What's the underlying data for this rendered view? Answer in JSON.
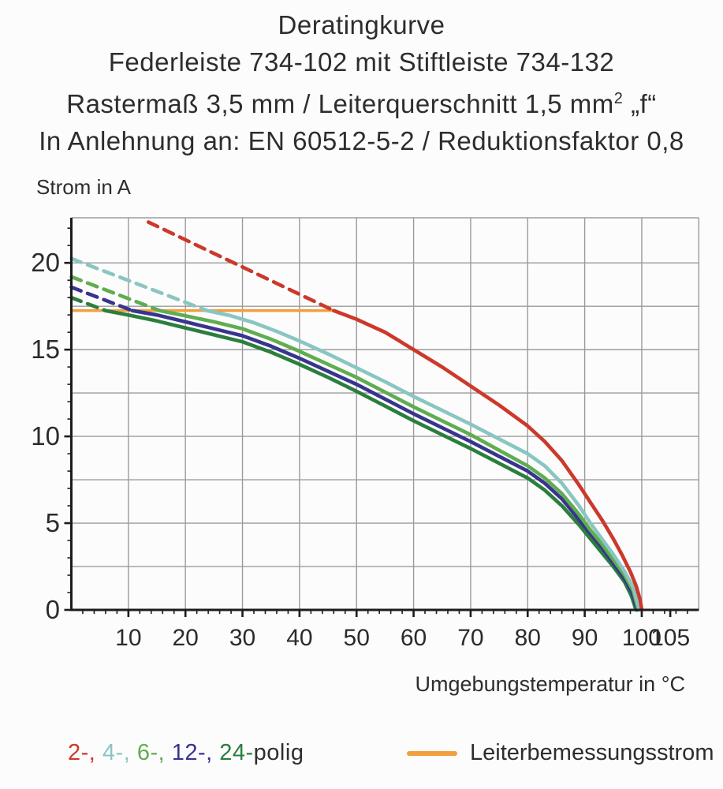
{
  "title": {
    "line1": "Deratingkurve",
    "line2": "Federleiste 734-102 mit Stiftleiste 734-132",
    "line3_pre": "Rastermaß 3,5 mm / Leiterquerschnitt 1,5 mm",
    "line3_sup": "2",
    "line3_post": " „f“",
    "line4": "In Anlehnung an: EN 60512-5-2 / Reduktionsfaktor 0,8"
  },
  "axes": {
    "y_title": "Strom in A",
    "x_title": "Umgebungstemperatur in °C"
  },
  "legend": {
    "poles": [
      {
        "text": "2-, ",
        "color": "#cc392b"
      },
      {
        "text": "4-, ",
        "color": "#8ac6c1"
      },
      {
        "text": "6-, ",
        "color": "#5fad4f"
      },
      {
        "text": "12-, ",
        "color": "#38348f"
      },
      {
        "text": "24-",
        "color": "#2b7e3d"
      },
      {
        "text": "polig",
        "color": "#2e2e2e"
      }
    ],
    "rated_label": "Leiterbemessungsstrom",
    "rated_color": "#f0a03c"
  },
  "chart_data": {
    "type": "line",
    "title": "Deratingkurve Federleiste 734-102 mit Stiftleiste 734-132",
    "xlabel": "Umgebungstemperatur in °C",
    "ylabel": "Strom in A",
    "xlim": [
      0,
      110
    ],
    "ylim": [
      0,
      22.6
    ],
    "grid": {
      "x_values": [
        10,
        20,
        30,
        40,
        50,
        60,
        70,
        80,
        90,
        100
      ],
      "y_values": [
        2.5,
        5,
        7.5,
        10,
        12.5,
        15,
        17.5,
        20
      ],
      "color": "#9b9b9b",
      "frame_color": "#9b9b9b"
    },
    "ticks": {
      "x_major": [
        10,
        20,
        30,
        40,
        50,
        60,
        70,
        80,
        90,
        100,
        105
      ],
      "x_major_labels": [
        "10",
        "20",
        "30",
        "40",
        "50",
        "60",
        "70",
        "80",
        "90",
        "100",
        "105"
      ],
      "x_minor_step": 2,
      "y_major": [
        0,
        5,
        10,
        15,
        20
      ],
      "y_major_labels": [
        "0",
        "5",
        "10",
        "15",
        "20"
      ],
      "y_minor_step": 1,
      "axis_color": "#1c1c1c",
      "label_color": "#2b2b2b"
    },
    "rated_line": {
      "label": "Leiterbemessungsstrom",
      "y": 17.25,
      "x_from": 0,
      "x_to": 46,
      "color": "#f0a03c"
    },
    "series": [
      {
        "name": "2-polig",
        "color": "#cc392b",
        "dashed": [
          [
            13.5,
            22.35
          ],
          [
            46,
            17.25
          ]
        ],
        "solid": [
          [
            46,
            17.25
          ],
          [
            50,
            16.75
          ],
          [
            55,
            16.0
          ],
          [
            60,
            15.0
          ],
          [
            65,
            14.0
          ],
          [
            70,
            12.9
          ],
          [
            75,
            11.8
          ],
          [
            80,
            10.6
          ],
          [
            83,
            9.7
          ],
          [
            86,
            8.6
          ],
          [
            89,
            7.2
          ],
          [
            91,
            6.2
          ],
          [
            93,
            5.2
          ],
          [
            95,
            4.1
          ],
          [
            96.5,
            3.2
          ],
          [
            98,
            2.2
          ],
          [
            99,
            1.4
          ],
          [
            99.7,
            0.6
          ],
          [
            100,
            0
          ]
        ]
      },
      {
        "name": "4-polig",
        "color": "#8ac6c1",
        "dashed": [
          [
            0,
            20.25
          ],
          [
            23.8,
            17.25
          ]
        ],
        "solid": [
          [
            23.8,
            17.25
          ],
          [
            28,
            16.95
          ],
          [
            32,
            16.55
          ],
          [
            36,
            16.05
          ],
          [
            40,
            15.5
          ],
          [
            45,
            14.75
          ],
          [
            50,
            13.95
          ],
          [
            55,
            13.15
          ],
          [
            60,
            12.3
          ],
          [
            65,
            11.5
          ],
          [
            70,
            10.7
          ],
          [
            75,
            9.85
          ],
          [
            80,
            9.0
          ],
          [
            83,
            8.3
          ],
          [
            86,
            7.3
          ],
          [
            89,
            6.0
          ],
          [
            91,
            5.0
          ],
          [
            93,
            4.1
          ],
          [
            95,
            3.2
          ],
          [
            97,
            2.2
          ],
          [
            98.5,
            1.3
          ],
          [
            99.6,
            0
          ]
        ]
      },
      {
        "name": "6-polig",
        "color": "#5fad4f",
        "dashed": [
          [
            0,
            19.2
          ],
          [
            15.5,
            17.25
          ]
        ],
        "solid": [
          [
            15.5,
            17.25
          ],
          [
            20,
            16.95
          ],
          [
            25,
            16.6
          ],
          [
            30,
            16.2
          ],
          [
            35,
            15.6
          ],
          [
            40,
            14.9
          ],
          [
            45,
            14.15
          ],
          [
            50,
            13.4
          ],
          [
            55,
            12.55
          ],
          [
            60,
            11.7
          ],
          [
            65,
            10.9
          ],
          [
            70,
            10.1
          ],
          [
            75,
            9.2
          ],
          [
            80,
            8.3
          ],
          [
            83,
            7.6
          ],
          [
            86,
            6.7
          ],
          [
            89,
            5.5
          ],
          [
            91,
            4.6
          ],
          [
            93,
            3.8
          ],
          [
            95,
            2.9
          ],
          [
            97,
            2.0
          ],
          [
            98.5,
            1.1
          ],
          [
            99.4,
            0
          ]
        ]
      },
      {
        "name": "12-polig",
        "color": "#38348f",
        "dashed": [
          [
            0,
            18.6
          ],
          [
            10.7,
            17.25
          ]
        ],
        "solid": [
          [
            10.7,
            17.25
          ],
          [
            15,
            17.0
          ],
          [
            20,
            16.6
          ],
          [
            25,
            16.2
          ],
          [
            30,
            15.8
          ],
          [
            35,
            15.2
          ],
          [
            40,
            14.5
          ],
          [
            45,
            13.75
          ],
          [
            50,
            13.0
          ],
          [
            55,
            12.15
          ],
          [
            60,
            11.3
          ],
          [
            65,
            10.5
          ],
          [
            70,
            9.7
          ],
          [
            75,
            8.85
          ],
          [
            80,
            8.0
          ],
          [
            83,
            7.3
          ],
          [
            86,
            6.4
          ],
          [
            89,
            5.2
          ],
          [
            91,
            4.4
          ],
          [
            93,
            3.6
          ],
          [
            95,
            2.7
          ],
          [
            97,
            1.8
          ],
          [
            98.3,
            1.0
          ],
          [
            99.2,
            0
          ]
        ]
      },
      {
        "name": "24-polig",
        "color": "#2b7e3d",
        "dashed": [
          [
            0,
            18.0
          ],
          [
            6,
            17.25
          ]
        ],
        "solid": [
          [
            6,
            17.25
          ],
          [
            10,
            17.0
          ],
          [
            15,
            16.65
          ],
          [
            20,
            16.25
          ],
          [
            25,
            15.85
          ],
          [
            30,
            15.45
          ],
          [
            35,
            14.85
          ],
          [
            40,
            14.15
          ],
          [
            45,
            13.4
          ],
          [
            50,
            12.6
          ],
          [
            55,
            11.75
          ],
          [
            60,
            10.9
          ],
          [
            65,
            10.1
          ],
          [
            70,
            9.3
          ],
          [
            75,
            8.45
          ],
          [
            80,
            7.6
          ],
          [
            83,
            6.9
          ],
          [
            86,
            6.0
          ],
          [
            89,
            4.9
          ],
          [
            91,
            4.1
          ],
          [
            93,
            3.3
          ],
          [
            95,
            2.5
          ],
          [
            97,
            1.6
          ],
          [
            98.2,
            0.8
          ],
          [
            99,
            0
          ]
        ]
      }
    ],
    "legend_position": "bottom"
  }
}
